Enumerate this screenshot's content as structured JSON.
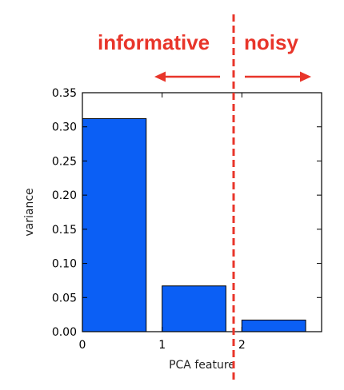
{
  "colors": {
    "bar": "#0b5ff5",
    "annotation": "#e8352a",
    "axis": "#000000"
  },
  "annotations": {
    "left": "informative",
    "right": "noisy"
  },
  "chart_data": {
    "type": "bar",
    "title": "",
    "xlabel": "PCA feature",
    "ylabel": "variance",
    "categories": [
      "0",
      "1",
      "2"
    ],
    "values": [
      0.312,
      0.067,
      0.017
    ],
    "ylim": [
      0,
      0.35
    ],
    "xlim": [
      0,
      3
    ],
    "yticks": [
      "0.00",
      "0.05",
      "0.10",
      "0.15",
      "0.20",
      "0.25",
      "0.30",
      "0.35"
    ],
    "xticks": [
      "0",
      "1",
      "2"
    ],
    "grid": false,
    "legend": "none"
  }
}
